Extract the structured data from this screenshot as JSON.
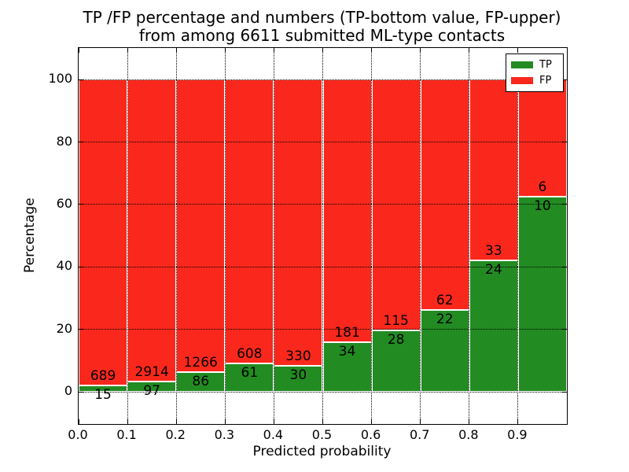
{
  "title": {
    "line1": "TP /FP percentage and numbers (TP-bottom value, FP-upper)",
    "line2": "from among 6611 submitted ML-type contacts"
  },
  "axes": {
    "xlabel": "Predicted probability",
    "ylabel": "Percentage",
    "xticks": [
      {
        "value": 0.0,
        "label": "0.0"
      },
      {
        "value": 0.1,
        "label": "0.1"
      },
      {
        "value": 0.2,
        "label": "0.2"
      },
      {
        "value": 0.3,
        "label": "0.3"
      },
      {
        "value": 0.4,
        "label": "0.4"
      },
      {
        "value": 0.5,
        "label": "0.5"
      },
      {
        "value": 0.6,
        "label": "0.6"
      },
      {
        "value": 0.7,
        "label": "0.7"
      },
      {
        "value": 0.8,
        "label": "0.8"
      },
      {
        "value": 0.9,
        "label": "0.9"
      }
    ],
    "yticks": [
      {
        "value": 0,
        "label": "0"
      },
      {
        "value": 20,
        "label": "20"
      },
      {
        "value": 40,
        "label": "40"
      },
      {
        "value": 60,
        "label": "60"
      },
      {
        "value": 80,
        "label": "80"
      },
      {
        "value": 100,
        "label": "100"
      }
    ]
  },
  "legend": {
    "position": "upper-right",
    "items": [
      {
        "label": "TP",
        "color": "#228b22"
      },
      {
        "label": "FP",
        "color": "#fa281c"
      }
    ]
  },
  "chart_data": {
    "type": "bar",
    "stacked": true,
    "title": "TP /FP percentage and numbers (TP-bottom value, FP-upper) from among 6611 submitted ML-type contacts",
    "xlabel": "Predicted probability",
    "ylabel": "Percentage",
    "xlim": [
      0.0,
      1.0
    ],
    "ylim": [
      -10.3,
      110.1
    ],
    "grid": true,
    "legend_position": "upper right",
    "bin_width": 0.1,
    "bin_left_edges": [
      0.0,
      0.1,
      0.2,
      0.3,
      0.4,
      0.5,
      0.6,
      0.7,
      0.8,
      0.9
    ],
    "series": [
      {
        "name": "TP",
        "color": "#228b22",
        "counts": [
          15,
          97,
          86,
          61,
          30,
          34,
          28,
          22,
          24,
          10
        ]
      },
      {
        "name": "FP",
        "color": "#fa281c",
        "counts": [
          689,
          2914,
          1266,
          608,
          330,
          181,
          115,
          62,
          33,
          6
        ]
      }
    ],
    "tp_percentages": [
      2.13,
      3.22,
      6.36,
      9.12,
      8.33,
      15.81,
      19.58,
      26.19,
      42.11,
      62.5
    ],
    "total_submitted": 6611
  }
}
